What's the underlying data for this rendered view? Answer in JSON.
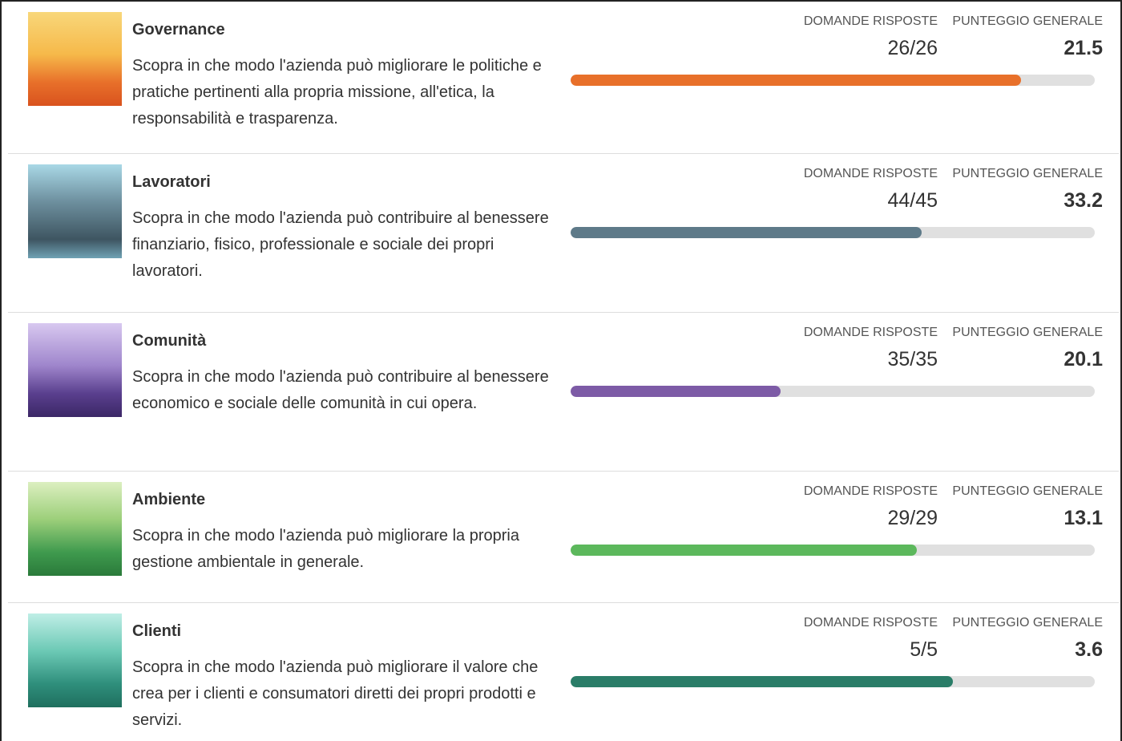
{
  "answered_label": "DOMANDE RISPOSTE",
  "score_label": "PUNTEGGIO GENERALE",
  "progress_lim": [
    0,
    100
  ],
  "sections": [
    {
      "title": "Governance",
      "description": "Scopra in che modo l'azienda può migliorare le politiche e pratiche pertinenti alla propria missione, all'etica, la responsabilità e trasparenza.",
      "answered": "26/26",
      "score": 21.5,
      "progress": 86,
      "color": "#e8702a"
    },
    {
      "title": "Lavoratori",
      "description": "Scopra in che modo l'azienda può contribuire al benessere finanziario, fisico, professionale e sociale dei propri lavoratori.",
      "answered": "44/45",
      "score": 33.2,
      "progress": 67,
      "color": "#5e7a89"
    },
    {
      "title": "Comunità",
      "description": "Scopra in che modo l'azienda può contribuire al benessere economico e sociale delle comunità in cui opera.",
      "answered": "35/35",
      "score": 20.1,
      "progress": 40,
      "color": "#7d5ba6"
    },
    {
      "title": "Ambiente",
      "description": "Scopra in che modo l'azienda può migliorare la propria gestione ambientale in generale.",
      "answered": "29/29",
      "score": 13.1,
      "progress": 66,
      "color": "#5cb85c"
    },
    {
      "title": "Clienti",
      "description": "Scopra in che modo l'azienda può migliorare il valore che crea per i clienti e consumatori diretti dei propri prodotti e servizi.",
      "answered": "5/5",
      "score": 3.6,
      "progress": 73,
      "color": "#2a7d68"
    }
  ]
}
